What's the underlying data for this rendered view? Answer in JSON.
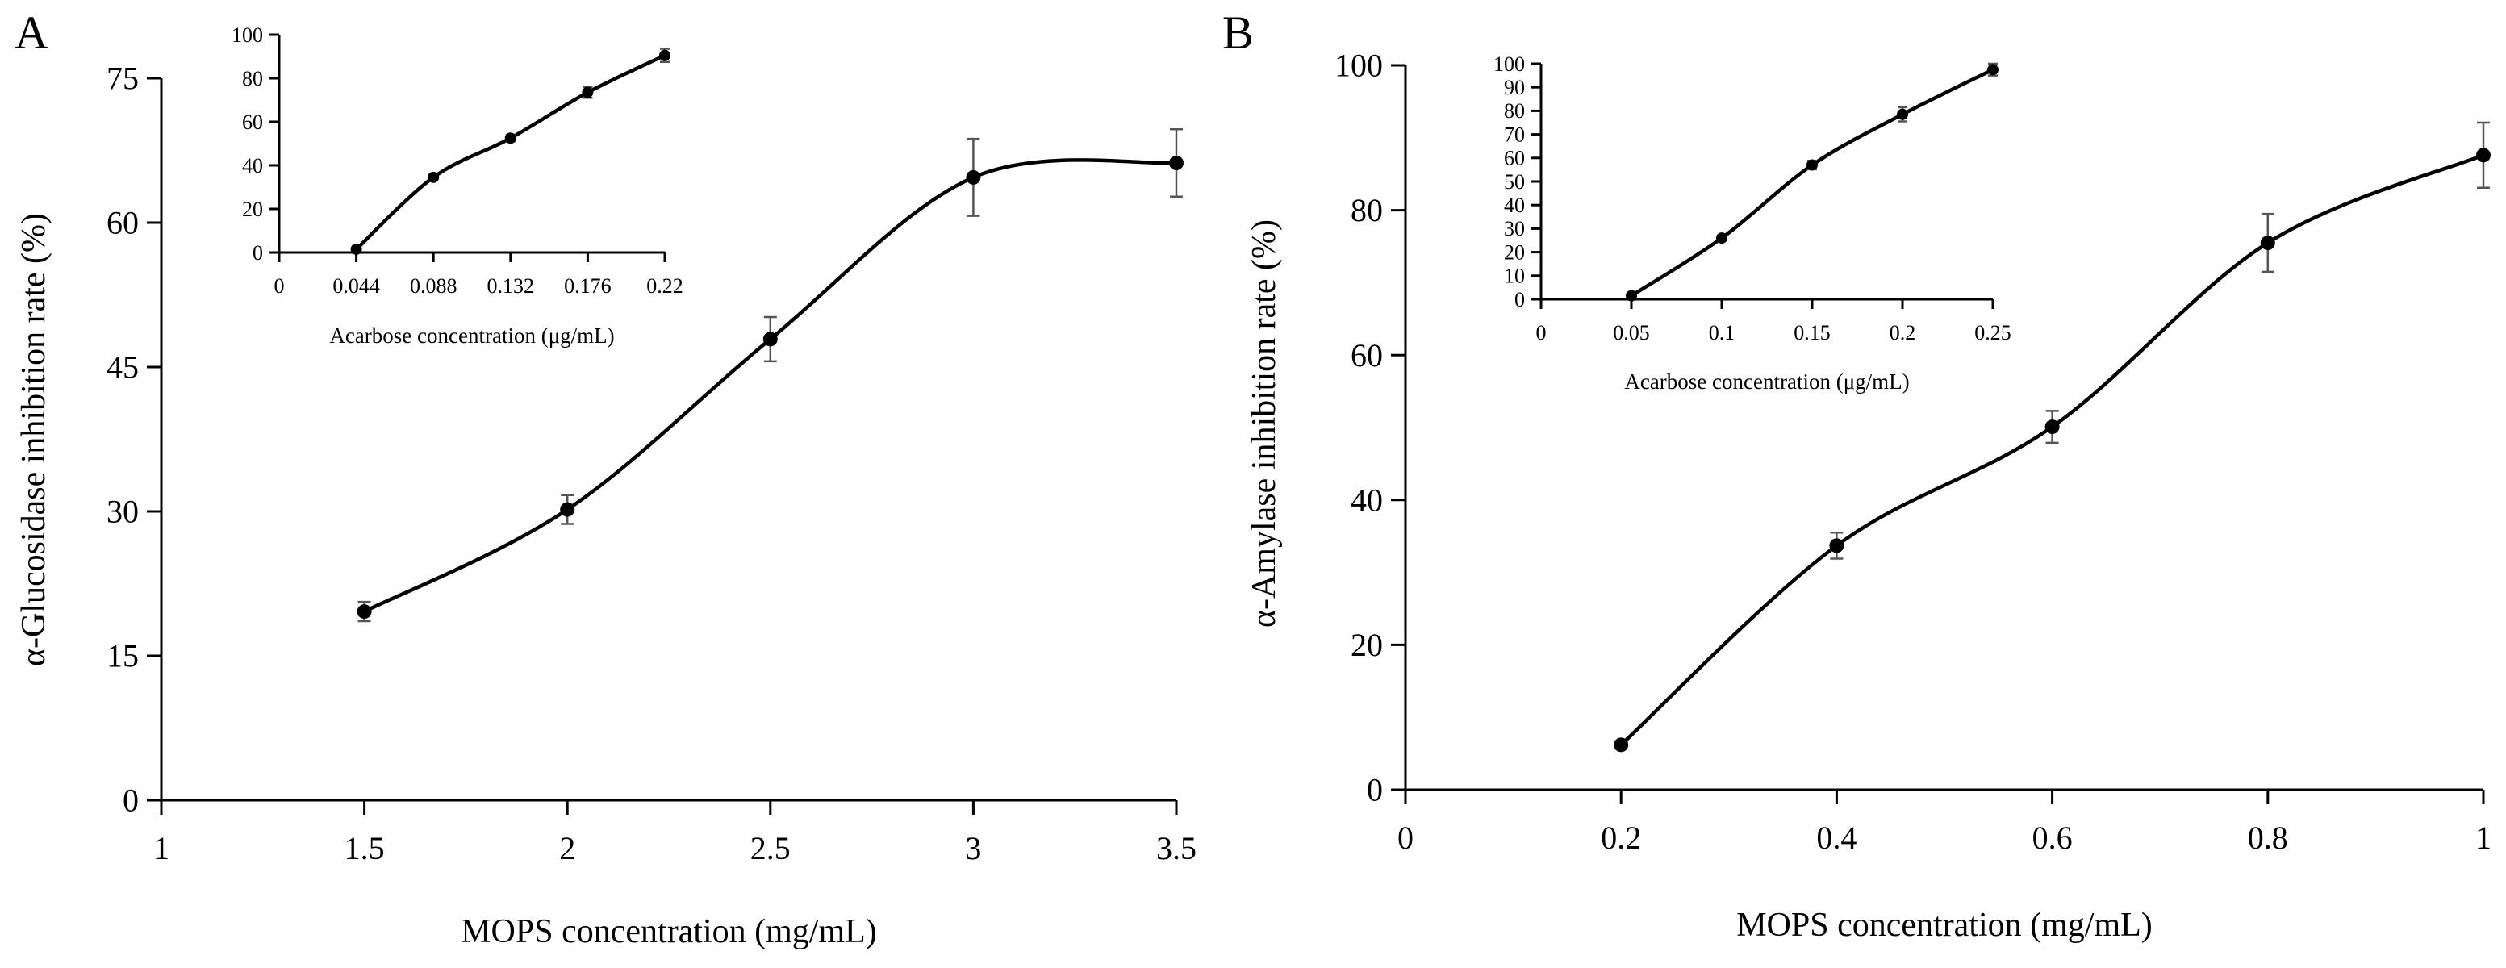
{
  "chart_data": [
    {
      "panel": "A",
      "type": "line",
      "xlabel": "MOPS concentration (mg/mL)",
      "ylabel": "α-Glucosidase inhibition rate (%)",
      "xlim": [
        1,
        3.5
      ],
      "ylim": [
        0,
        75
      ],
      "xticks": [
        "1",
        "1.5",
        "2",
        "2.5",
        "3",
        "3.5"
      ],
      "yticks": [
        "0",
        "15",
        "30",
        "45",
        "60",
        "75"
      ],
      "series": [
        {
          "x": [
            1.5,
            2,
            2.5,
            3,
            3.5
          ],
          "values": [
            19.6,
            30.2,
            47.9,
            64.7,
            66.2
          ],
          "errors": [
            1.0,
            1.5,
            2.3,
            4.0,
            3.5
          ]
        }
      ],
      "inset": {
        "type": "line",
        "xlabel": "Acarbose concentration (μg/mL)",
        "xlim": [
          0,
          0.22
        ],
        "ylim": [
          0,
          100
        ],
        "xticks": [
          "0",
          "0.044",
          "0.088",
          "0.132",
          "0.176",
          "0.22"
        ],
        "yticks": [
          "0",
          "20",
          "40",
          "60",
          "80",
          "100"
        ],
        "series": [
          {
            "x": [
              0.044,
              0.088,
              0.132,
              0.176,
              0.22
            ],
            "values": [
              1.5,
              34.5,
              52.5,
              73.5,
              90.5
            ],
            "errors": [
              0.5,
              1.2,
              1.5,
              2.5,
              3.0
            ]
          }
        ]
      }
    },
    {
      "panel": "B",
      "type": "line",
      "xlabel": "MOPS concentration (mg/mL)",
      "ylabel": "α-Amylase inhibition rate (%)",
      "xlim": [
        0,
        1
      ],
      "ylim": [
        0,
        100
      ],
      "xticks": [
        "0",
        "0.2",
        "0.4",
        "0.6",
        "0.8",
        "1"
      ],
      "yticks": [
        "0",
        "20",
        "40",
        "60",
        "80",
        "100"
      ],
      "series": [
        {
          "x": [
            0.2,
            0.4,
            0.6,
            0.8,
            1
          ],
          "values": [
            6.2,
            33.7,
            50.1,
            75.5,
            87.6
          ],
          "errors": [
            0.5,
            1.8,
            2.2,
            4.0,
            4.5
          ]
        }
      ],
      "inset": {
        "type": "line",
        "xlabel": "Acarbose concentration (μg/mL)",
        "xlim": [
          0,
          0.25
        ],
        "ylim": [
          0,
          100
        ],
        "xticks": [
          "0",
          "0.05",
          "0.1",
          "0.15",
          "0.2",
          "0.25"
        ],
        "yticks": [
          "0",
          "10",
          "20",
          "30",
          "40",
          "50",
          "60",
          "70",
          "80",
          "90",
          "100"
        ],
        "series": [
          {
            "x": [
              0.05,
              0.1,
              0.15,
              0.2,
              0.25
            ],
            "values": [
              1.5,
              26.0,
              57.0,
              78.5,
              97.5
            ],
            "errors": [
              0.8,
              1.0,
              1.8,
              3.0,
              2.5
            ]
          }
        ]
      }
    }
  ]
}
